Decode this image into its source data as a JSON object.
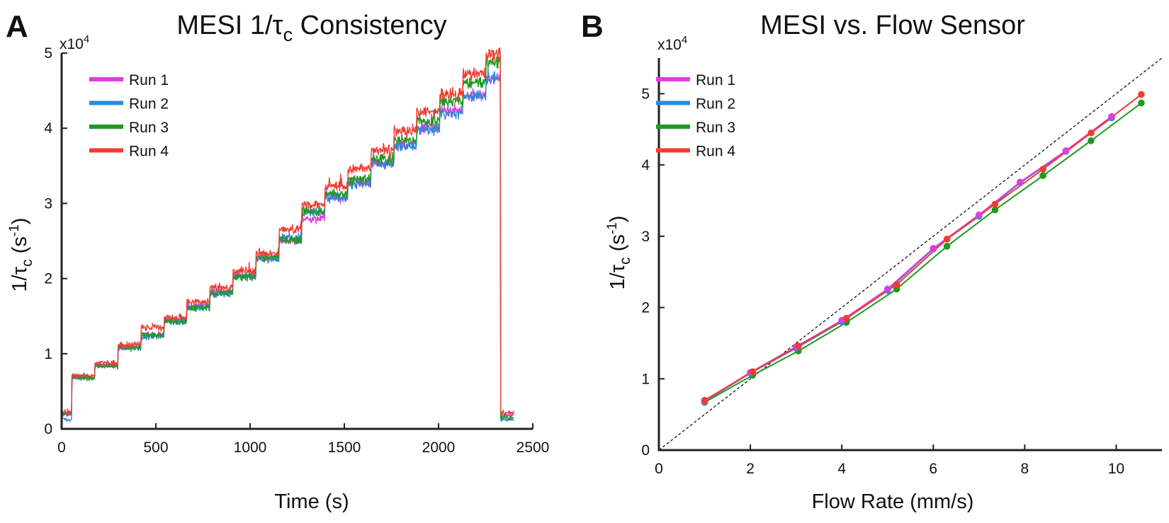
{
  "figure": {
    "panel_a_letter": "A",
    "panel_b_letter": "B"
  },
  "chart_data": [
    {
      "type": "line",
      "title": "MESI 1/τc Consistency",
      "title_main": "MESI 1/τ",
      "title_sub": "c",
      "title_end": " Consistency",
      "xlabel": "Time (s)",
      "ylabel": "1/τc (s-1)",
      "ylabel_parts": {
        "main": "1/τ",
        "sub": "c",
        "mid": " (s",
        "sup": "-1",
        "end": ")"
      },
      "y_multiplier_label": {
        "base": "x10",
        "exp": "4"
      },
      "xlim": [
        0,
        2500
      ],
      "ylim": [
        0,
        50000
      ],
      "xticks": [
        0,
        500,
        1000,
        1500,
        2000,
        2500
      ],
      "yticks": [
        0,
        10000,
        20000,
        30000,
        40000,
        50000
      ],
      "ytick_labels": [
        "0",
        "1",
        "2",
        "3",
        "4",
        "5"
      ],
      "legend_position": "top-left",
      "grid": false,
      "step_start_time": 55,
      "step_duration": 122,
      "step_end_time": 2330,
      "baseline_before": [
        2000,
        1300,
        2000,
        2200
      ],
      "baseline_after": [
        1800,
        1200,
        1500,
        2200
      ],
      "series": [
        {
          "name": "Run 1",
          "color": "#e03ce0",
          "steps": [
            6900,
            8500,
            10900,
            12500,
            14500,
            16400,
            18300,
            20500,
            22800,
            25000,
            28000,
            30800,
            32900,
            35300,
            37800,
            40000,
            42300,
            44300,
            46700
          ]
        },
        {
          "name": "Run 2",
          "color": "#2b8bd6",
          "steps": [
            6800,
            8400,
            10800,
            12300,
            14300,
            16100,
            18000,
            20200,
            22600,
            25300,
            28800,
            30800,
            32600,
            35300,
            37600,
            39800,
            42000,
            44300,
            46500
          ]
        },
        {
          "name": "Run 3",
          "color": "#1f9a1f",
          "steps": [
            6800,
            8400,
            10800,
            12500,
            14300,
            16100,
            18100,
            20300,
            22800,
            25200,
            28900,
            31200,
            33200,
            35800,
            38400,
            41000,
            43500,
            46100,
            48700
          ]
        },
        {
          "name": "Run 4",
          "color": "#f23b30",
          "steps": [
            7100,
            8700,
            11200,
            13500,
            14800,
            16900,
            18800,
            21000,
            23300,
            26600,
            29900,
            32300,
            34700,
            37100,
            39600,
            42200,
            44600,
            47200,
            49800
          ]
        }
      ]
    },
    {
      "type": "line",
      "title": "MESI vs. Flow Sensor",
      "xlabel": "Flow Rate (mm/s)",
      "ylabel": "1/τc (s-1)",
      "ylabel_parts": {
        "main": "1/τ",
        "sub": "c",
        "mid": " (s",
        "sup": "-1",
        "end": ")"
      },
      "y_multiplier_label": {
        "base": "x10",
        "exp": "4"
      },
      "xlim": [
        0,
        11
      ],
      "ylim": [
        0,
        55000
      ],
      "xticks": [
        0,
        2,
        4,
        6,
        8,
        10
      ],
      "yticks": [
        0,
        10000,
        20000,
        30000,
        40000,
        50000
      ],
      "ytick_labels": [
        "0",
        "1",
        "2",
        "3",
        "4",
        "5"
      ],
      "legend_position": "top-left",
      "grid": false,
      "reference_line": {
        "style": "dashed",
        "color": "#111111",
        "x": [
          0,
          11
        ],
        "y": [
          0,
          55000
        ]
      },
      "series": [
        {
          "name": "Run 1",
          "color": "#e03ce0",
          "x": [
            1.0,
            2.0,
            3.0,
            4.0,
            5.0,
            6.0,
            7.0,
            7.9,
            8.9,
            9.9
          ],
          "y": [
            6900,
            10900,
            14500,
            18200,
            22600,
            28300,
            33000,
            37600,
            42000,
            46800
          ]
        },
        {
          "name": "Run 2",
          "color": "#2b8bd6",
          "x": [
            1.0,
            2.0,
            3.0,
            4.0,
            5.0,
            6.0,
            7.0,
            7.9,
            8.9,
            9.9
          ],
          "y": [
            6800,
            10800,
            14300,
            18000,
            22400,
            28200,
            32800,
            37500,
            41900,
            46600
          ]
        },
        {
          "name": "Run 3",
          "color": "#1f9a1f",
          "x": [
            1.0,
            2.05,
            3.05,
            4.1,
            5.2,
            6.3,
            7.35,
            8.4,
            9.45,
            10.55
          ],
          "y": [
            6700,
            10500,
            13900,
            17900,
            22600,
            28600,
            33700,
            38500,
            43400,
            48700
          ]
        },
        {
          "name": "Run 4",
          "color": "#f23b30",
          "x": [
            1.0,
            2.05,
            3.05,
            4.1,
            5.2,
            6.3,
            7.35,
            8.4,
            9.45,
            10.55
          ],
          "y": [
            7000,
            11000,
            14600,
            18500,
            23200,
            29600,
            34500,
            39400,
            44500,
            49900
          ]
        }
      ]
    }
  ]
}
